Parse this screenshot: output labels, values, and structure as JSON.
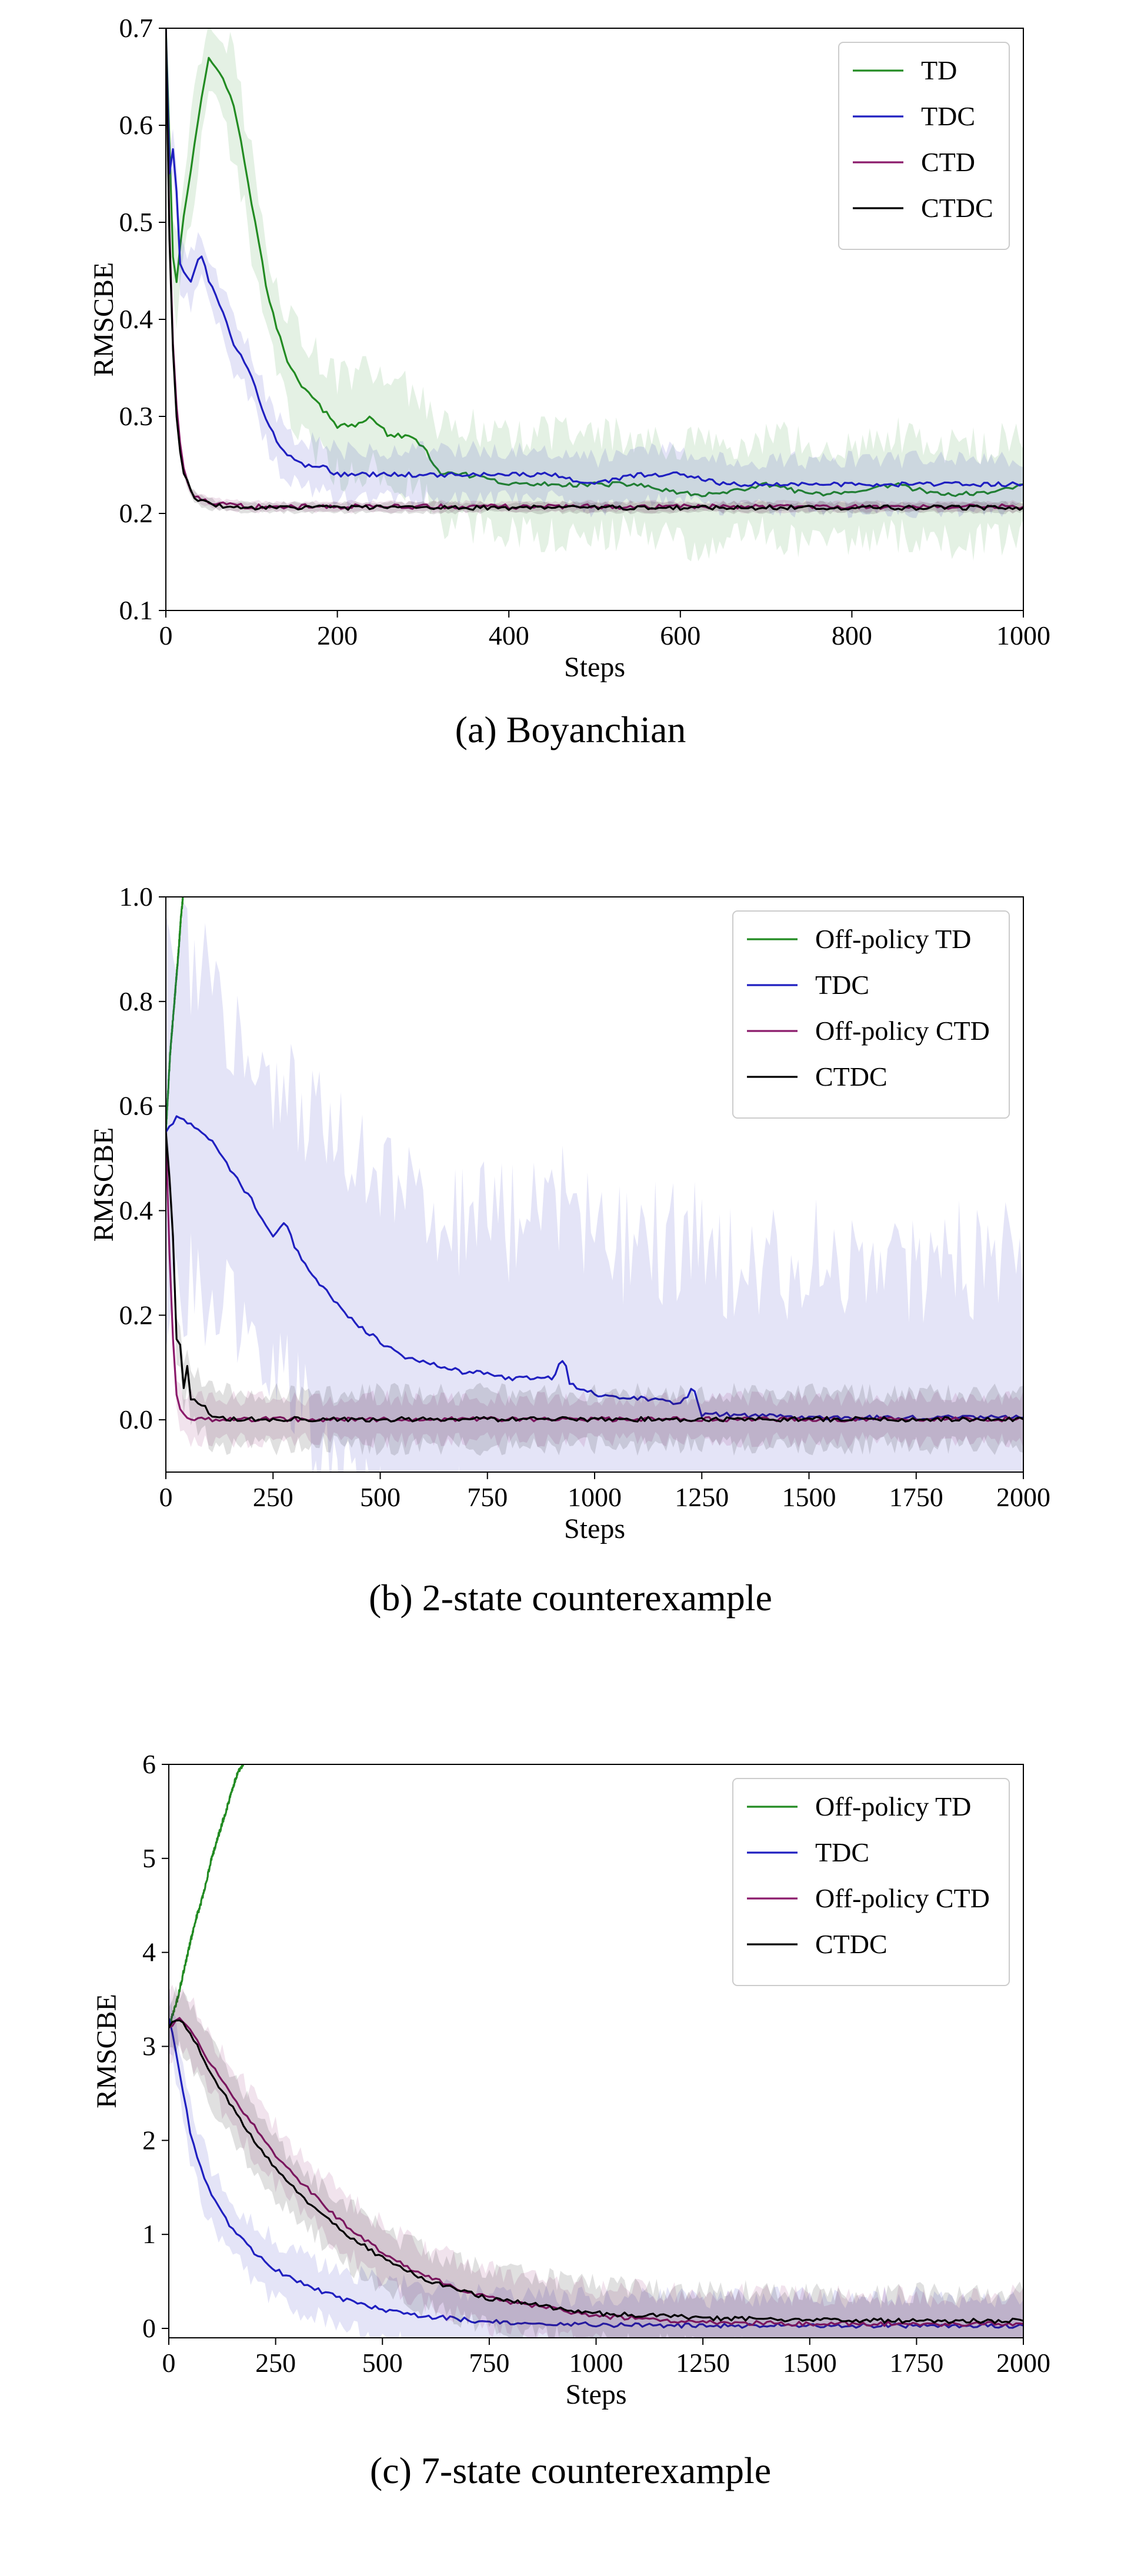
{
  "chart_data": [
    {
      "type": "line",
      "caption": "(a) Boyanchian",
      "xlabel": "Steps",
      "ylabel": "RMSCBE",
      "xlim": [
        0,
        1000
      ],
      "ylim": [
        0.1,
        0.7
      ],
      "xticks": [
        0,
        200,
        400,
        600,
        800,
        1000
      ],
      "xtick_labels": [
        "0",
        "200",
        "400",
        "600",
        "800",
        "1000"
      ],
      "yticks": [
        0.1,
        0.2,
        0.3,
        0.4,
        0.5,
        0.6,
        0.7
      ],
      "ytick_labels": [
        "0.1",
        "0.2",
        "0.3",
        "0.4",
        "0.5",
        "0.6",
        "0.7"
      ],
      "grid": false,
      "legend_position": "top-right",
      "series": [
        {
          "name": "TD",
          "color": "#228b22",
          "band": 0.05,
          "x": [
            0,
            10,
            20,
            30,
            40,
            50,
            60,
            70,
            80,
            90,
            100,
            120,
            140,
            160,
            180,
            200,
            220,
            240,
            260,
            280,
            300,
            320,
            350,
            400,
            450,
            500,
            550,
            600,
            650,
            700,
            750,
            800,
            850,
            900,
            950,
            1000
          ],
          "y": [
            0.7,
            0.42,
            0.5,
            0.56,
            0.62,
            0.67,
            0.66,
            0.64,
            0.62,
            0.57,
            0.52,
            0.42,
            0.36,
            0.33,
            0.31,
            0.29,
            0.29,
            0.3,
            0.28,
            0.28,
            0.27,
            0.24,
            0.24,
            0.23,
            0.23,
            0.23,
            0.23,
            0.22,
            0.22,
            0.23,
            0.22,
            0.22,
            0.23,
            0.22,
            0.22,
            0.23
          ]
        },
        {
          "name": "TDC",
          "color": "#1f1fc0",
          "band": 0.025,
          "x": [
            0,
            5,
            10,
            15,
            20,
            30,
            40,
            50,
            60,
            70,
            80,
            90,
            100,
            120,
            140,
            160,
            180,
            200,
            250,
            300,
            350,
            400,
            450,
            500,
            550,
            600,
            650,
            700,
            750,
            800,
            850,
            900,
            950,
            1000
          ],
          "y": [
            0.7,
            0.52,
            0.6,
            0.46,
            0.45,
            0.44,
            0.47,
            0.44,
            0.42,
            0.4,
            0.37,
            0.36,
            0.34,
            0.29,
            0.26,
            0.25,
            0.25,
            0.24,
            0.24,
            0.24,
            0.24,
            0.24,
            0.24,
            0.23,
            0.24,
            0.24,
            0.23,
            0.23,
            0.23,
            0.23,
            0.23,
            0.23,
            0.23,
            0.23
          ]
        },
        {
          "name": "CTD",
          "color": "#8b1a6b",
          "band": 0.005,
          "x": [
            0,
            5,
            10,
            15,
            20,
            30,
            40,
            50,
            60,
            80,
            100,
            150,
            200,
            300,
            400,
            500,
            600,
            700,
            800,
            900,
            1000
          ],
          "y": [
            0.7,
            0.45,
            0.34,
            0.28,
            0.25,
            0.22,
            0.215,
            0.212,
            0.21,
            0.208,
            0.207,
            0.207,
            0.207,
            0.207,
            0.207,
            0.207,
            0.207,
            0.207,
            0.207,
            0.207,
            0.207
          ]
        },
        {
          "name": "CTDC",
          "color": "#000000",
          "band": 0.005,
          "x": [
            0,
            5,
            10,
            15,
            20,
            30,
            40,
            50,
            60,
            80,
            100,
            150,
            200,
            300,
            400,
            500,
            600,
            700,
            800,
            900,
            1000
          ],
          "y": [
            0.7,
            0.44,
            0.33,
            0.27,
            0.245,
            0.22,
            0.213,
            0.21,
            0.208,
            0.207,
            0.206,
            0.206,
            0.206,
            0.206,
            0.206,
            0.206,
            0.206,
            0.206,
            0.206,
            0.206,
            0.206
          ]
        }
      ]
    },
    {
      "type": "line",
      "caption": "(b) 2-state counterexample",
      "xlabel": "Steps",
      "ylabel": "RMSCBE",
      "xlim": [
        0,
        2000
      ],
      "ylim": [
        -0.1,
        1.0
      ],
      "xticks": [
        0,
        250,
        500,
        750,
        1000,
        1250,
        1500,
        1750,
        2000
      ],
      "xtick_labels": [
        "0",
        "250",
        "500",
        "750",
        "1000",
        "1250",
        "1500",
        "1750",
        "2000"
      ],
      "yticks": [
        0.0,
        0.2,
        0.4,
        0.6,
        0.8,
        1.0
      ],
      "ytick_labels": [
        "0.0",
        "0.2",
        "0.4",
        "0.6",
        "0.8",
        "1.0"
      ],
      "grid": false,
      "legend_position": "top-right",
      "series": [
        {
          "name": "Off-policy TD",
          "color": "#228b22",
          "band": 0,
          "x": [
            0,
            10,
            20,
            30,
            35,
            40
          ],
          "y": [
            0.55,
            0.7,
            0.8,
            0.9,
            0.96,
            1.0
          ]
        },
        {
          "name": "TDC",
          "color": "#1f1fc0",
          "band": 0.3,
          "x": [
            0,
            25,
            50,
            100,
            150,
            200,
            250,
            280,
            300,
            350,
            400,
            450,
            500,
            550,
            600,
            650,
            700,
            750,
            800,
            850,
            900,
            930,
            940,
            960,
            1000,
            1050,
            1100,
            1150,
            1200,
            1230,
            1250,
            1300,
            1500,
            1750,
            2000
          ],
          "y": [
            0.55,
            0.58,
            0.57,
            0.54,
            0.48,
            0.42,
            0.35,
            0.38,
            0.33,
            0.27,
            0.22,
            0.18,
            0.15,
            0.12,
            0.11,
            0.1,
            0.09,
            0.09,
            0.08,
            0.08,
            0.08,
            0.12,
            0.07,
            0.06,
            0.05,
            0.04,
            0.04,
            0.04,
            0.03,
            0.06,
            0.01,
            0.01,
            0.005,
            0.004,
            0.004
          ]
        },
        {
          "name": "Off-policy CTD",
          "color": "#8b1a6b",
          "band": 0.04,
          "x": [
            0,
            5,
            10,
            15,
            20,
            25,
            30,
            40,
            50,
            75,
            100,
            200,
            500,
            1000,
            1500,
            2000
          ],
          "y": [
            0.55,
            0.4,
            0.28,
            0.18,
            0.1,
            0.05,
            0.03,
            0.01,
            0.005,
            0.002,
            0.001,
            0.001,
            0.001,
            0.001,
            0.001,
            0.001
          ]
        },
        {
          "name": "CTDC",
          "color": "#000000",
          "band": 0.05,
          "x": [
            0,
            10,
            20,
            25,
            30,
            35,
            40,
            50,
            60,
            70,
            80,
            90,
            100,
            110,
            130,
            200,
            500,
            1000,
            1500,
            2000
          ],
          "y": [
            0.55,
            0.45,
            0.3,
            0.15,
            0.22,
            0.1,
            0.05,
            0.1,
            0.03,
            0.05,
            0.02,
            0.03,
            0.01,
            0.005,
            0.002,
            0.001,
            0.001,
            0.001,
            0.001,
            0.001
          ]
        }
      ]
    },
    {
      "type": "line",
      "caption": "(c) 7-state counterexample",
      "xlabel": "Steps",
      "ylabel": "RMSCBE",
      "xlim": [
        0,
        2000
      ],
      "ylim": [
        -0.1,
        6
      ],
      "xticks": [
        0,
        250,
        500,
        750,
        1000,
        1250,
        1500,
        1750,
        2000
      ],
      "xtick_labels": [
        "0",
        "250",
        "500",
        "750",
        "1000",
        "1250",
        "1500",
        "1750",
        "2000"
      ],
      "yticks": [
        0,
        1,
        2,
        3,
        4,
        5,
        6
      ],
      "ytick_labels": [
        "0",
        "1",
        "2",
        "3",
        "4",
        "5",
        "6"
      ],
      "grid": false,
      "legend_position": "top-right",
      "series": [
        {
          "name": "Off-policy TD",
          "color": "#228b22",
          "band": 0,
          "x": [
            0,
            20,
            40,
            60,
            80,
            100,
            120,
            140,
            160,
            175
          ],
          "y": [
            3.2,
            3.5,
            3.9,
            4.3,
            4.6,
            5.0,
            5.3,
            5.6,
            5.9,
            6.0
          ]
        },
        {
          "name": "TDC",
          "color": "#1f1fc0",
          "band": 0.3,
          "x": [
            0,
            15,
            30,
            50,
            75,
            100,
            150,
            200,
            250,
            300,
            400,
            500,
            600,
            750,
            1000,
            1250,
            1500,
            1750,
            2000
          ],
          "y": [
            3.3,
            3.0,
            2.6,
            2.1,
            1.7,
            1.4,
            1.05,
            0.8,
            0.62,
            0.5,
            0.32,
            0.2,
            0.13,
            0.07,
            0.04,
            0.03,
            0.03,
            0.03,
            0.03
          ]
        },
        {
          "name": "Off-policy CTD",
          "color": "#8b1a6b",
          "band": 0.3,
          "x": [
            0,
            20,
            40,
            60,
            80,
            100,
            150,
            200,
            250,
            300,
            400,
            500,
            600,
            750,
            1000,
            1250,
            1500,
            1750,
            2000
          ],
          "y": [
            3.2,
            3.3,
            3.25,
            3.1,
            2.95,
            2.8,
            2.45,
            2.15,
            1.85,
            1.6,
            1.15,
            0.8,
            0.55,
            0.32,
            0.13,
            0.07,
            0.05,
            0.05,
            0.05
          ]
        },
        {
          "name": "CTDC",
          "color": "#000000",
          "band": 0.3,
          "x": [
            0,
            20,
            40,
            60,
            80,
            100,
            150,
            200,
            250,
            300,
            400,
            500,
            600,
            750,
            1000,
            1250,
            1500,
            1750,
            2000
          ],
          "y": [
            3.2,
            3.3,
            3.2,
            3.05,
            2.9,
            2.7,
            2.35,
            2.0,
            1.7,
            1.45,
            1.05,
            0.75,
            0.52,
            0.32,
            0.16,
            0.11,
            0.09,
            0.08,
            0.08
          ]
        }
      ]
    }
  ]
}
